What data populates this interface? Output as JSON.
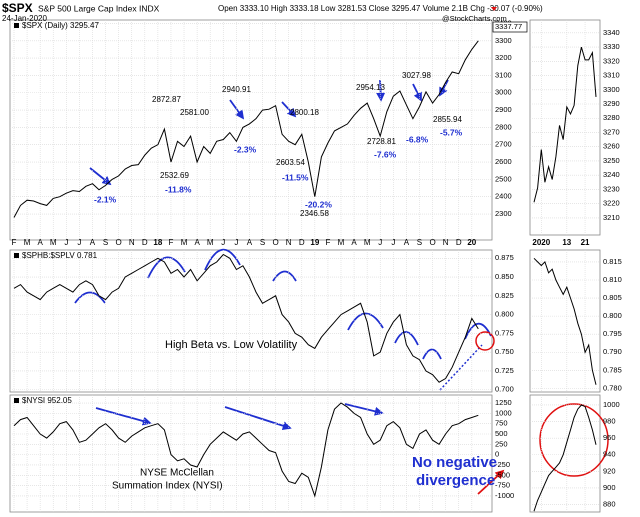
{
  "chart_data": [
    {
      "type": "line",
      "title": "$SPX",
      "subtitle": "S&P 500 Large Cap Index INDX",
      "date": "24-Jan-2020",
      "quote": "Open 3333.10 High 3333.18 Low 3281.53 Close 3295.47 Volume 2.1B Chg -30.07 (-0.90%)",
      "source": "@StockCharts.com",
      "last_label": "3337.77",
      "categories": [
        "F",
        null,
        "M",
        null,
        "A",
        null,
        "M",
        null,
        "J",
        null,
        "J",
        null,
        "A",
        null,
        "S",
        null,
        "O",
        null,
        "N",
        null,
        "D",
        null,
        "18",
        null,
        "F",
        null,
        "M",
        null,
        "A",
        null,
        "M",
        null,
        "J",
        null,
        "J",
        null,
        "A",
        null,
        "S",
        null,
        "O",
        null,
        "N",
        null,
        "D",
        null,
        "19",
        null,
        "F",
        null,
        "M",
        null,
        "A",
        null,
        "M",
        null,
        "J",
        null,
        "J",
        null,
        "A",
        null,
        "S",
        null,
        "O",
        null,
        "N",
        null,
        "D",
        null,
        "20",
        null
      ],
      "series": [
        {
          "name": "$SPX (Daily) 3295.47",
          "color": "#000000",
          "values": [
            2280,
            2350,
            2380,
            2375,
            2360,
            2350,
            2390,
            2400,
            2420,
            2435,
            2430,
            2460,
            2475,
            2440,
            2465,
            2500,
            2520,
            2560,
            2580,
            2585,
            2640,
            2680,
            2700,
            2790,
            2600,
            2720,
            2690,
            2750,
            2600,
            2690,
            2650,
            2720,
            2730,
            2770,
            2720,
            2800,
            2820,
            2850,
            2900,
            2905,
            2925,
            2760,
            2720,
            2700,
            2760,
            2600,
            2400,
            2630,
            2710,
            2780,
            2800,
            2820,
            2870,
            2910,
            2940,
            2850,
            2750,
            2890,
            2980,
            3010,
            2930,
            2850,
            2920,
            3005,
            2940,
            2990,
            3060,
            3120,
            3110,
            3190,
            3250,
            3300
          ]
        }
      ],
      "ylim": [
        2150,
        3420
      ],
      "yticks": [
        2300,
        2400,
        2500,
        2600,
        2700,
        2800,
        2900,
        3000,
        3100,
        3200,
        3300,
        3400
      ],
      "grid": true,
      "annotations": [
        "2872.87",
        "2581.00",
        "2532.69",
        "-11.8%",
        "-2.1%",
        "-2.3%",
        "2940.91",
        "2800.18",
        "2603.54",
        "-11.5%",
        "-20.2%",
        "2346.58",
        "2954.13",
        "2728.81",
        "-7.6%",
        "3027.98",
        "-6.8%",
        "2855.94",
        "-5.7%"
      ]
    },
    {
      "type": "line",
      "series": [
        {
          "name": "$SPHB:$SPLV 0.781",
          "color": "#000000",
          "values": [
            0.835,
            0.84,
            0.83,
            0.825,
            0.82,
            0.83,
            0.835,
            0.84,
            0.835,
            0.83,
            0.84,
            0.845,
            0.84,
            0.825,
            0.82,
            0.83,
            0.835,
            0.85,
            0.855,
            0.86,
            0.865,
            0.87,
            0.875,
            0.87,
            0.855,
            0.86,
            0.85,
            0.86,
            0.845,
            0.855,
            0.865,
            0.87,
            0.88,
            0.875,
            0.86,
            0.865,
            0.85,
            0.83,
            0.815,
            0.82,
            0.825,
            0.8,
            0.79,
            0.775,
            0.77,
            0.76,
            0.755,
            0.77,
            0.78,
            0.79,
            0.8,
            0.805,
            0.81,
            0.815,
            0.79,
            0.745,
            0.75,
            0.775,
            0.79,
            0.8,
            0.76,
            0.745,
            0.74,
            0.725,
            0.72,
            0.71,
            0.715,
            0.73,
            0.75,
            0.77,
            0.795,
            0.781
          ]
        }
      ],
      "ylim": [
        0.697,
        0.886
      ],
      "yticks": [
        {
          "value": 0.7,
          "label": "0.700"
        },
        0.725,
        {
          "value": 0.75,
          "label": "0.750"
        },
        0.775,
        {
          "value": 0.8,
          "label": "0.800"
        },
        0.825,
        {
          "value": 0.85,
          "label": "0.850"
        },
        0.875
      ],
      "grid": true,
      "annotations": [
        "High Beta vs. Low Volatility"
      ]
    },
    {
      "type": "line",
      "series": [
        {
          "name": "$NYSI 952.05",
          "color": "#000000",
          "values": [
            700,
            850,
            900,
            700,
            500,
            400,
            550,
            750,
            800,
            600,
            300,
            350,
            500,
            650,
            750,
            600,
            400,
            300,
            450,
            550,
            650,
            700,
            750,
            600,
            0,
            -150,
            -100,
            -250,
            -300,
            0,
            250,
            400,
            550,
            450,
            350,
            500,
            550,
            400,
            250,
            100,
            50,
            -400,
            -650,
            -700,
            -450,
            -550,
            -1000,
            -300,
            600,
            1100,
            1250,
            1150,
            1000,
            900,
            500,
            250,
            350,
            700,
            800,
            650,
            250,
            150,
            500,
            600,
            350,
            250,
            500,
            700,
            750,
            850,
            900,
            952.05
          ]
        }
      ],
      "ylim": [
        -1390,
        1445
      ],
      "yticks": [
        -1000,
        -750,
        -500,
        -250,
        0,
        250,
        500,
        750,
        1000,
        1250
      ],
      "grid": true,
      "annotations": [
        "NYSE McClellan",
        "Summation Index (NYSI)",
        "No negative",
        "divergence"
      ]
    },
    {
      "type": "line",
      "categories": [
        null,
        null,
        "2020",
        null,
        null,
        null,
        null,
        null,
        null,
        "13",
        null,
        null,
        null,
        null,
        "21",
        null,
        null,
        null
      ],
      "series": [
        {
          "color": "#000000",
          "values": [
            3221,
            3231,
            3258,
            3235,
            3246,
            3237,
            3253,
            3275,
            3265,
            3288,
            3283,
            3289,
            3317,
            3330,
            3321,
            3321,
            3326,
            3295
          ]
        }
      ],
      "ylim": [
        3198,
        3349
      ],
      "yticks": [
        3210,
        3220,
        3230,
        3240,
        3250,
        3260,
        3270,
        3280,
        3290,
        3300,
        3310,
        3320,
        3330,
        3340
      ],
      "grid": true
    },
    {
      "type": "line",
      "series": [
        {
          "color": "#000000",
          "values": [
            0.816,
            0.815,
            0.814,
            0.815,
            0.812,
            0.813,
            0.81,
            0.808,
            0.806,
            0.808,
            0.805,
            0.802,
            0.798,
            0.795,
            0.79,
            0.792,
            0.785,
            0.781
          ]
        }
      ],
      "ylim": [
        0.779,
        0.8183
      ],
      "yticks": [
        {
          "value": 0.78,
          "label": "0.780"
        },
        0.785,
        {
          "value": 0.79,
          "label": "0.790"
        },
        0.795,
        {
          "value": 0.8,
          "label": "0.800"
        },
        0.805,
        {
          "value": 0.81,
          "label": "0.810"
        },
        0.815
      ],
      "grid": true
    },
    {
      "type": "line",
      "series": [
        {
          "color": "#000000",
          "values": [
            872,
            885,
            895,
            905,
            915,
            920,
            925,
            930,
            940,
            955,
            970,
            985,
            995,
            1000,
            998,
            985,
            970,
            952.05
          ]
        }
      ],
      "ylim": [
        871,
        1012
      ],
      "yticks": [
        880,
        900,
        920,
        940,
        960,
        980,
        1000
      ],
      "grid": true
    }
  ]
}
